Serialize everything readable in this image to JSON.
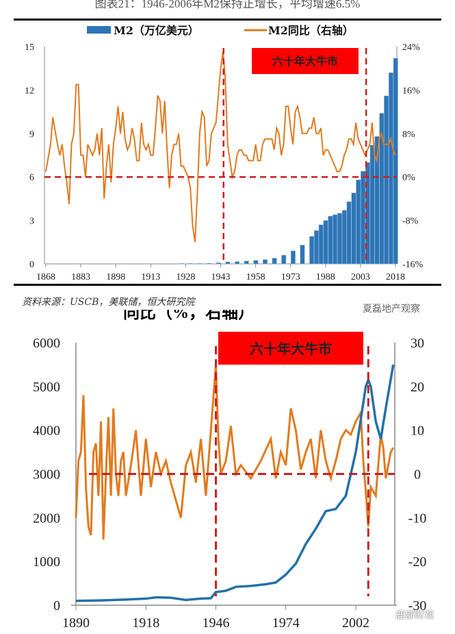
{
  "top_title": "图表21：1946-2006年M2保持正增长，平均增速6.5%",
  "source": "资料来源：USCB，美联储，恒大研究院",
  "watermark1": "夏磊地产观察",
  "watermark2": "鹿部财观",
  "bottom_title_fragment": "同比（%，右轴）",
  "colors": {
    "bar": "#2e75b6",
    "orange": "#e07b20",
    "blue_line": "#2471a8",
    "dashed": "#cc1f1f",
    "banner": "#ff0000"
  },
  "chart_data": [
    {
      "type": "bar+line",
      "legend": [
        "M2（万亿美元）",
        "M2同比（右轴）"
      ],
      "legend_placement": "top",
      "annotation": "六十年大牛市",
      "annotation_lines_x": [
        1946,
        2006
      ],
      "reference_line_y_right": 0,
      "x_ticks": [
        1868,
        1883,
        1898,
        1913,
        1928,
        1943,
        1958,
        1973,
        1988,
        2003,
        2018
      ],
      "y_left": {
        "range": [
          0,
          15
        ],
        "ticks": [
          0,
          3,
          6,
          9,
          12,
          15
        ]
      },
      "y_right": {
        "range": [
          -16,
          24
        ],
        "ticks": [
          "-16%",
          "-8%",
          "0%",
          "8%",
          "16%",
          "24%"
        ],
        "values": [
          -16,
          -8,
          0,
          8,
          16,
          24
        ]
      },
      "m2_bars": {
        "x": [
          1926,
          1930,
          1934,
          1938,
          1942,
          1946,
          1950,
          1954,
          1958,
          1962,
          1966,
          1970,
          1974,
          1978,
          1982,
          1984,
          1986,
          1988,
          1990,
          1992,
          1994,
          1996,
          1998,
          2000,
          2002,
          2004,
          2006,
          2008,
          2010,
          2012,
          2014,
          2016,
          2018
        ],
        "values": [
          0.04,
          0.04,
          0.04,
          0.05,
          0.08,
          0.14,
          0.16,
          0.2,
          0.24,
          0.3,
          0.4,
          0.6,
          0.9,
          1.3,
          1.9,
          2.3,
          2.7,
          3.0,
          3.3,
          3.4,
          3.5,
          3.7,
          4.3,
          4.9,
          5.8,
          6.4,
          7.0,
          8.2,
          8.8,
          10.4,
          11.6,
          13.2,
          14.2
        ]
      },
      "m2_yoy": {
        "x": [
          1868,
          1870,
          1871,
          1873,
          1874,
          1875,
          1876,
          1877,
          1878,
          1879,
          1880,
          1881,
          1882,
          1883,
          1884,
          1885,
          1886,
          1887,
          1888,
          1889,
          1890,
          1891,
          1892,
          1893,
          1894,
          1895,
          1896,
          1897,
          1898,
          1899,
          1900,
          1901,
          1902,
          1903,
          1904,
          1905,
          1906,
          1907,
          1908,
          1909,
          1910,
          1911,
          1912,
          1913,
          1914,
          1915,
          1916,
          1917,
          1918,
          1919,
          1920,
          1921,
          1922,
          1923,
          1924,
          1925,
          1926,
          1927,
          1928,
          1929,
          1930,
          1931,
          1932,
          1933,
          1934,
          1935,
          1936,
          1937,
          1938,
          1939,
          1940,
          1941,
          1942,
          1943,
          1944,
          1945,
          1946,
          1947,
          1948,
          1949,
          1950,
          1951,
          1952,
          1953,
          1954,
          1955,
          1956,
          1957,
          1958,
          1959,
          1960,
          1961,
          1962,
          1963,
          1964,
          1965,
          1966,
          1967,
          1968,
          1969,
          1970,
          1971,
          1972,
          1973,
          1974,
          1975,
          1976,
          1977,
          1978,
          1979,
          1980,
          1981,
          1982,
          1983,
          1984,
          1985,
          1986,
          1987,
          1988,
          1989,
          1990,
          1991,
          1992,
          1993,
          1994,
          1995,
          1996,
          1997,
          1998,
          1999,
          2000,
          2001,
          2002,
          2003,
          2004,
          2005,
          2006,
          2007,
          2008,
          2009,
          2010,
          2011,
          2012,
          2013,
          2014,
          2015,
          2016,
          2017,
          2018
        ],
        "values": [
          1,
          6,
          11,
          6,
          4,
          6,
          2,
          -1,
          -5,
          6,
          8,
          17,
          17,
          4,
          4,
          0,
          6,
          5,
          4,
          5,
          8,
          4,
          9,
          -4,
          2,
          6,
          -1,
          6,
          9,
          13,
          8,
          12,
          7,
          5,
          6,
          9,
          7,
          3,
          3,
          10,
          6,
          5,
          6,
          4,
          4,
          9,
          15,
          14,
          8,
          14,
          5,
          -2,
          4,
          6,
          6,
          8,
          2,
          2,
          1,
          0,
          -2,
          -9,
          -12,
          -3,
          8,
          12,
          11,
          2,
          3,
          8,
          9,
          10,
          15,
          20,
          23,
          18,
          6,
          3,
          0,
          1,
          4,
          5,
          5,
          4,
          4,
          3,
          3,
          3,
          6,
          3,
          3,
          6,
          7,
          7,
          7,
          7,
          5,
          9,
          8,
          4,
          6,
          13,
          13,
          9,
          6,
          12,
          13,
          11,
          8,
          8,
          8,
          9,
          9,
          11,
          8,
          8,
          9,
          4,
          5,
          5,
          4,
          3,
          2,
          1,
          1,
          2,
          4,
          5,
          7,
          7,
          6,
          10,
          7,
          6,
          5,
          4,
          5,
          6,
          10,
          4,
          3,
          7,
          8,
          6,
          6,
          6,
          7,
          5,
          4
        ]
      }
    },
    {
      "type": "line",
      "annotation": "六十年大牛市",
      "annotation_lines_x": [
        1946,
        2007
      ],
      "reference_line_y_right": 0,
      "x_ticks": [
        1890,
        1918,
        1946,
        1974,
        2002
      ],
      "y_left": {
        "range": [
          0,
          6000
        ],
        "ticks": [
          0,
          1000,
          2000,
          3000,
          4000,
          5000,
          6000
        ]
      },
      "y_right": {
        "range": [
          -30,
          30
        ],
        "ticks": [
          -30,
          -20,
          -10,
          0,
          10,
          20,
          30
        ]
      },
      "level": {
        "x": [
          1890,
          1900,
          1910,
          1918,
          1922,
          1928,
          1934,
          1940,
          1944,
          1946,
          1950,
          1954,
          1960,
          1966,
          1970,
          1974,
          1978,
          1982,
          1986,
          1990,
          1994,
          1998,
          2002,
          2006,
          2007,
          2008,
          2010,
          2012,
          2014,
          2017
        ],
        "values": [
          100,
          110,
          130,
          150,
          180,
          170,
          120,
          150,
          160,
          300,
          330,
          420,
          440,
          480,
          520,
          700,
          950,
          1400,
          1750,
          2150,
          2200,
          2500,
          3500,
          5000,
          5150,
          5000,
          4200,
          3800,
          4500,
          5500
        ]
      },
      "yoy": {
        "x": [
          1890,
          1891,
          1892,
          1893,
          1894,
          1895,
          1896,
          1897,
          1898,
          1899,
          1900,
          1901,
          1902,
          1903,
          1904,
          1905,
          1906,
          1907,
          1908,
          1909,
          1910,
          1912,
          1914,
          1916,
          1918,
          1920,
          1922,
          1924,
          1926,
          1928,
          1930,
          1932,
          1934,
          1936,
          1938,
          1940,
          1942,
          1944,
          1946,
          1947,
          1948,
          1950,
          1952,
          1954,
          1956,
          1960,
          1964,
          1968,
          1970,
          1972,
          1974,
          1976,
          1978,
          1980,
          1982,
          1984,
          1986,
          1988,
          1990,
          1992,
          1994,
          1996,
          1998,
          2000,
          2002,
          2004,
          2005,
          2006,
          2007,
          2008,
          2010,
          2012,
          2013,
          2014,
          2016,
          2017
        ],
        "values": [
          -10,
          3,
          5,
          18,
          -3,
          -12,
          -14,
          5,
          7,
          -5,
          12,
          -15,
          0,
          13,
          -5,
          15,
          0,
          -5,
          3,
          5,
          -5,
          2,
          10,
          -5,
          8,
          -3,
          5,
          0,
          3,
          -2,
          -6,
          -10,
          2,
          5,
          -2,
          8,
          -5,
          10,
          25,
          8,
          0,
          3,
          11,
          0,
          2,
          -1,
          3,
          8,
          -1,
          5,
          2,
          15,
          10,
          1,
          5,
          8,
          -1,
          10,
          3,
          -1,
          3,
          8,
          10,
          9,
          12,
          14,
          3,
          -4,
          -12,
          -3,
          -5,
          9,
          6,
          -1,
          5,
          6
        ]
      }
    }
  ]
}
